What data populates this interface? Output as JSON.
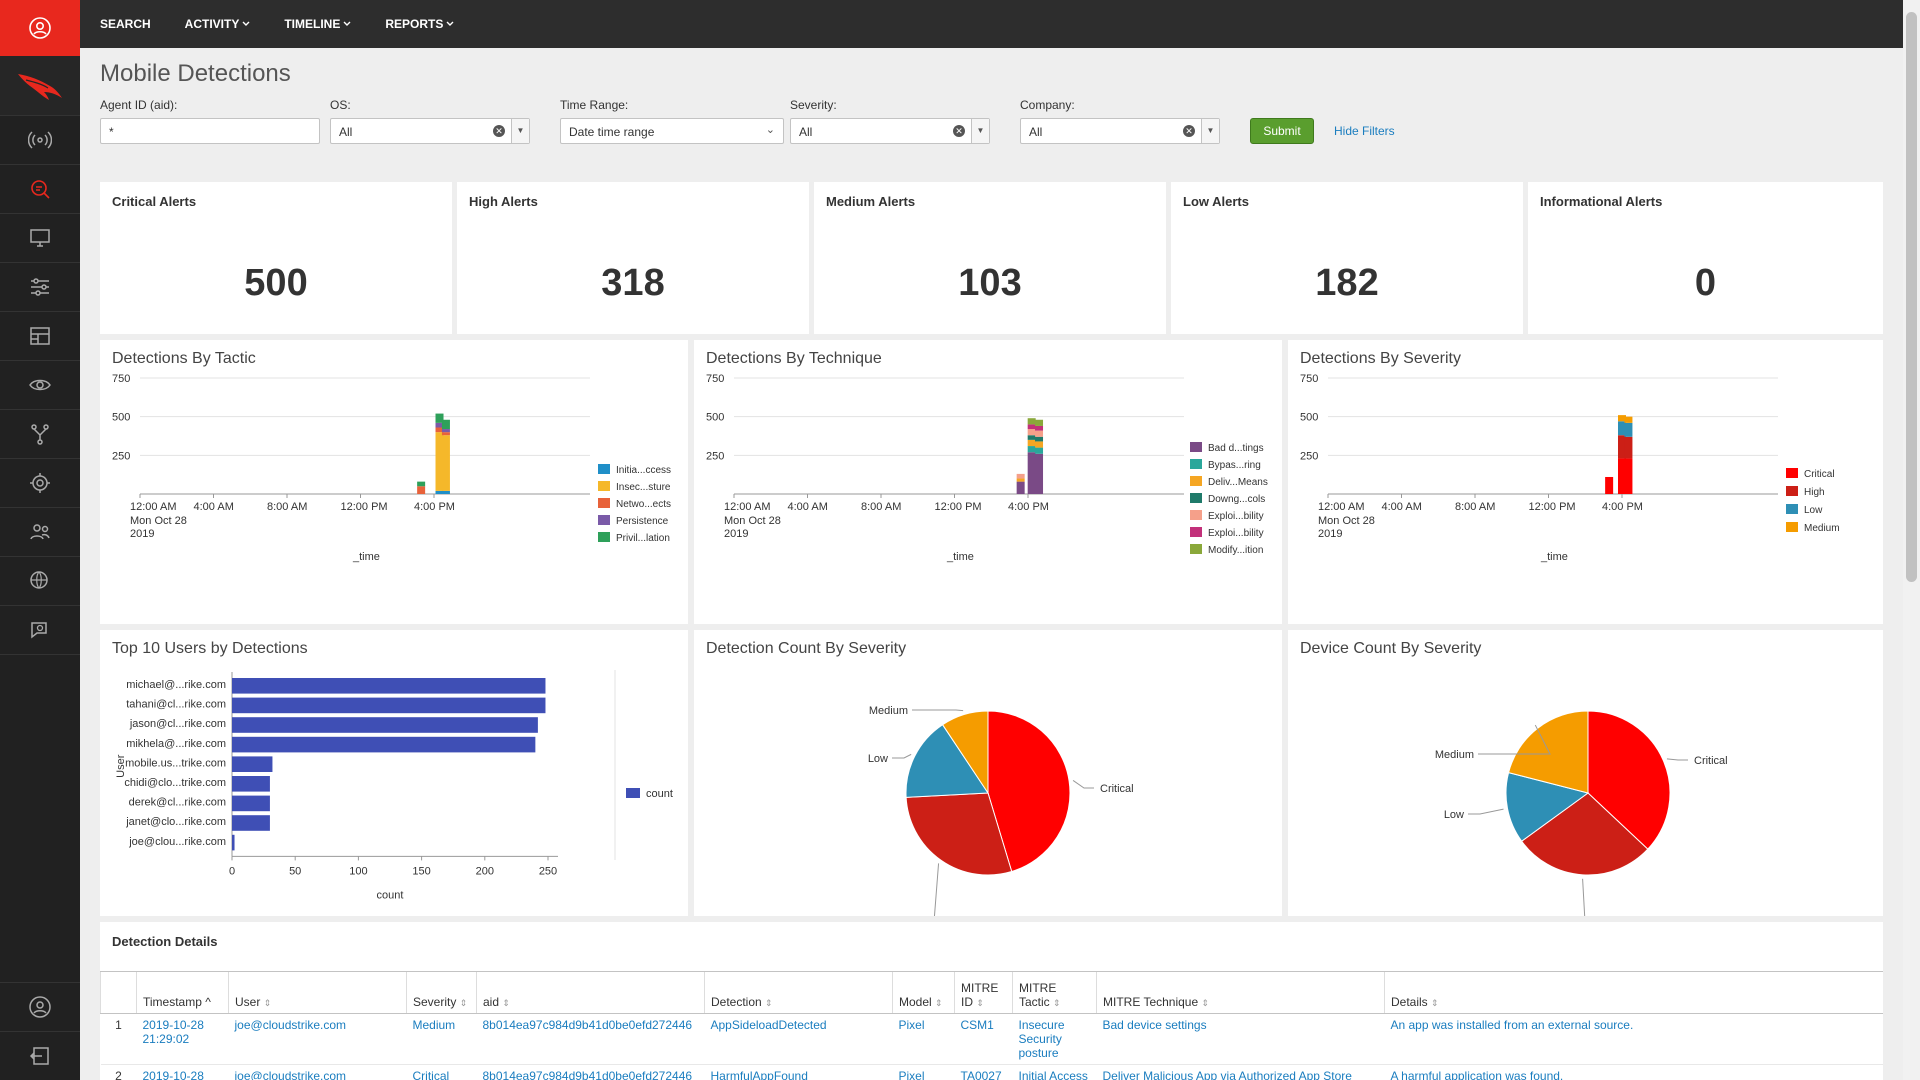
{
  "topnav": {
    "items": [
      "SEARCH",
      "ACTIVITY",
      "TIMELINE",
      "REPORTS"
    ]
  },
  "page": {
    "title": "Mobile Detections"
  },
  "filters": {
    "agent_id": {
      "label": "Agent ID (aid):",
      "value": "*"
    },
    "os": {
      "label": "OS:",
      "value": "All"
    },
    "time_range": {
      "label": "Time Range:",
      "value": "Date time range"
    },
    "severity": {
      "label": "Severity:",
      "value": "All"
    },
    "company": {
      "label": "Company:",
      "value": "All"
    },
    "submit_label": "Submit",
    "hide_filters_label": "Hide Filters"
  },
  "kpis": [
    {
      "title": "Critical Alerts",
      "value": "500"
    },
    {
      "title": "High Alerts",
      "value": "318"
    },
    {
      "title": "Medium Alerts",
      "value": "103"
    },
    {
      "title": "Low Alerts",
      "value": "182"
    },
    {
      "title": "Informational Alerts",
      "value": "0"
    }
  ],
  "charts": {
    "tactic_title": "Detections By Tactic",
    "technique_title": "Detections By Technique",
    "severity_title": "Detections By Severity",
    "users_title": "Top 10 Users by Detections",
    "det_count_title": "Detection Count By Severity",
    "dev_count_title": "Device Count By Severity"
  },
  "colors": {
    "critical": "#ff0000",
    "high": "#cc1f16",
    "low": "#2e8fb5",
    "medium": "#f59c00",
    "bar": "#3f4fb5"
  },
  "chart_data": [
    {
      "type": "bar",
      "title": "Detections By Tactic",
      "xlabel": "_time",
      "ylim": [
        0,
        750
      ],
      "yticks": [
        "750",
        "500",
        "250"
      ],
      "xticks": [
        "12:00 AM",
        "4:00 AM",
        "8:00 AM",
        "12:00 PM",
        "4:00 PM"
      ],
      "xsub": [
        "Mon Oct 28",
        "2019"
      ],
      "categories": [
        "~3:30 PM",
        "~4:00 PM",
        "~4:15 PM"
      ],
      "series": [
        {
          "name": "Initia...ccess",
          "color": "#1f8fc8",
          "values": [
            0,
            20,
            20
          ]
        },
        {
          "name": "Insec...sture",
          "color": "#f5b82a",
          "values": [
            0,
            380,
            360
          ]
        },
        {
          "name": "Netwo...ects",
          "color": "#e8623a",
          "values": [
            50,
            30,
            20
          ]
        },
        {
          "name": "Persistence",
          "color": "#7a5aa8",
          "values": [
            0,
            30,
            20
          ]
        },
        {
          "name": "Privil...lation",
          "color": "#2ea05a",
          "values": [
            30,
            60,
            60
          ]
        }
      ]
    },
    {
      "type": "bar",
      "title": "Detections By Technique",
      "xlabel": "_time",
      "ylim": [
        0,
        750
      ],
      "yticks": [
        "750",
        "500",
        "250"
      ],
      "xticks": [
        "12:00 AM",
        "4:00 AM",
        "8:00 AM",
        "12:00 PM",
        "4:00 PM"
      ],
      "xsub": [
        "Mon Oct 28",
        "2019"
      ],
      "categories": [
        "~3:40 PM",
        "~4:05 PM",
        "~4:15 PM"
      ],
      "series": [
        {
          "name": "Bad d...tings",
          "color": "#7a4a86",
          "values": [
            80,
            270,
            260
          ]
        },
        {
          "name": "Bypas...ring",
          "color": "#2aa79b",
          "values": [
            0,
            40,
            40
          ]
        },
        {
          "name": "Deliv...Means",
          "color": "#f5a623",
          "values": [
            20,
            40,
            40
          ]
        },
        {
          "name": "Downg...cols",
          "color": "#1f7a6a",
          "values": [
            0,
            30,
            30
          ]
        },
        {
          "name": "Exploi...bility",
          "color": "#f5a08a",
          "values": [
            30,
            40,
            40
          ]
        },
        {
          "name": "Exploi...bility",
          "color": "#c2307a",
          "values": [
            0,
            30,
            30
          ]
        },
        {
          "name": "Modify...ition",
          "color": "#8aa83a",
          "values": [
            0,
            40,
            40
          ]
        }
      ]
    },
    {
      "type": "bar",
      "title": "Detections By Severity",
      "xlabel": "_time",
      "ylim": [
        0,
        750
      ],
      "yticks": [
        "750",
        "500",
        "250"
      ],
      "xticks": [
        "12:00 AM",
        "4:00 AM",
        "8:00 AM",
        "12:00 PM",
        "4:00 PM"
      ],
      "xsub": [
        "Mon Oct 28",
        "2019"
      ],
      "categories": [
        "~3:30 PM",
        "~4:00 PM",
        "~4:15 PM"
      ],
      "series": [
        {
          "name": "Critical",
          "color": "#ff0000",
          "values": [
            110,
            230,
            230
          ]
        },
        {
          "name": "High",
          "color": "#cc1f16",
          "values": [
            0,
            150,
            140
          ]
        },
        {
          "name": "Low",
          "color": "#2e8fb5",
          "values": [
            0,
            90,
            90
          ]
        },
        {
          "name": "Medium",
          "color": "#f59c00",
          "values": [
            0,
            40,
            40
          ]
        }
      ]
    },
    {
      "type": "bar",
      "orientation": "horizontal",
      "title": "Top 10 Users by Detections",
      "xlabel": "count",
      "ylabel": "User",
      "xlim": [
        0,
        260
      ],
      "xticks": [
        "0",
        "50",
        "100",
        "150",
        "200",
        "250"
      ],
      "categories": [
        "michael@...rike.com",
        "tahani@cl...rike.com",
        "jason@cl...rike.com",
        "mikhela@...rike.com",
        "mobile.us...trike.com",
        "chidi@clo...trike.com",
        "derek@cl...rike.com",
        "janet@clo...rike.com",
        "joe@clou...rike.com"
      ],
      "series": [
        {
          "name": "count",
          "values": [
            248,
            248,
            242,
            240,
            32,
            30,
            30,
            30,
            2
          ]
        }
      ]
    },
    {
      "type": "pie",
      "title": "Detection Count By Severity",
      "categories": [
        "Critical",
        "High",
        "Low",
        "Medium"
      ],
      "values": [
        500,
        318,
        182,
        103
      ]
    },
    {
      "type": "pie",
      "title": "Device Count By Severity",
      "categories": [
        "Critical",
        "High",
        "Low",
        "Medium"
      ],
      "values": [
        37,
        28,
        14,
        21
      ]
    }
  ],
  "table": {
    "title": "Detection Details",
    "columns": [
      "Timestamp ^",
      "User",
      "Severity",
      "aid",
      "Detection",
      "Model",
      "MITRE ID",
      "MITRE Tactic",
      "MITRE Technique",
      "Details"
    ],
    "rows": [
      [
        "1",
        "2019-10-28 21:29:02",
        "joe@cloudstrike.com",
        "Medium",
        "8b014ea97c984d9b41d0be0efd272446",
        "AppSideloadDetected",
        "Pixel",
        "CSM1",
        "Insecure Security posture",
        "Bad device settings",
        "An app was installed from an external source."
      ],
      [
        "2",
        "2019-10-28",
        "joe@cloudstrike.com",
        "Critical",
        "8b014ea97c984d9b41d0be0efd272446",
        "HarmfulAppFound",
        "Pixel",
        "TA0027",
        "Initial Access",
        "Deliver Malicious App via Authorized App Store",
        "A harmful application was found."
      ]
    ]
  }
}
